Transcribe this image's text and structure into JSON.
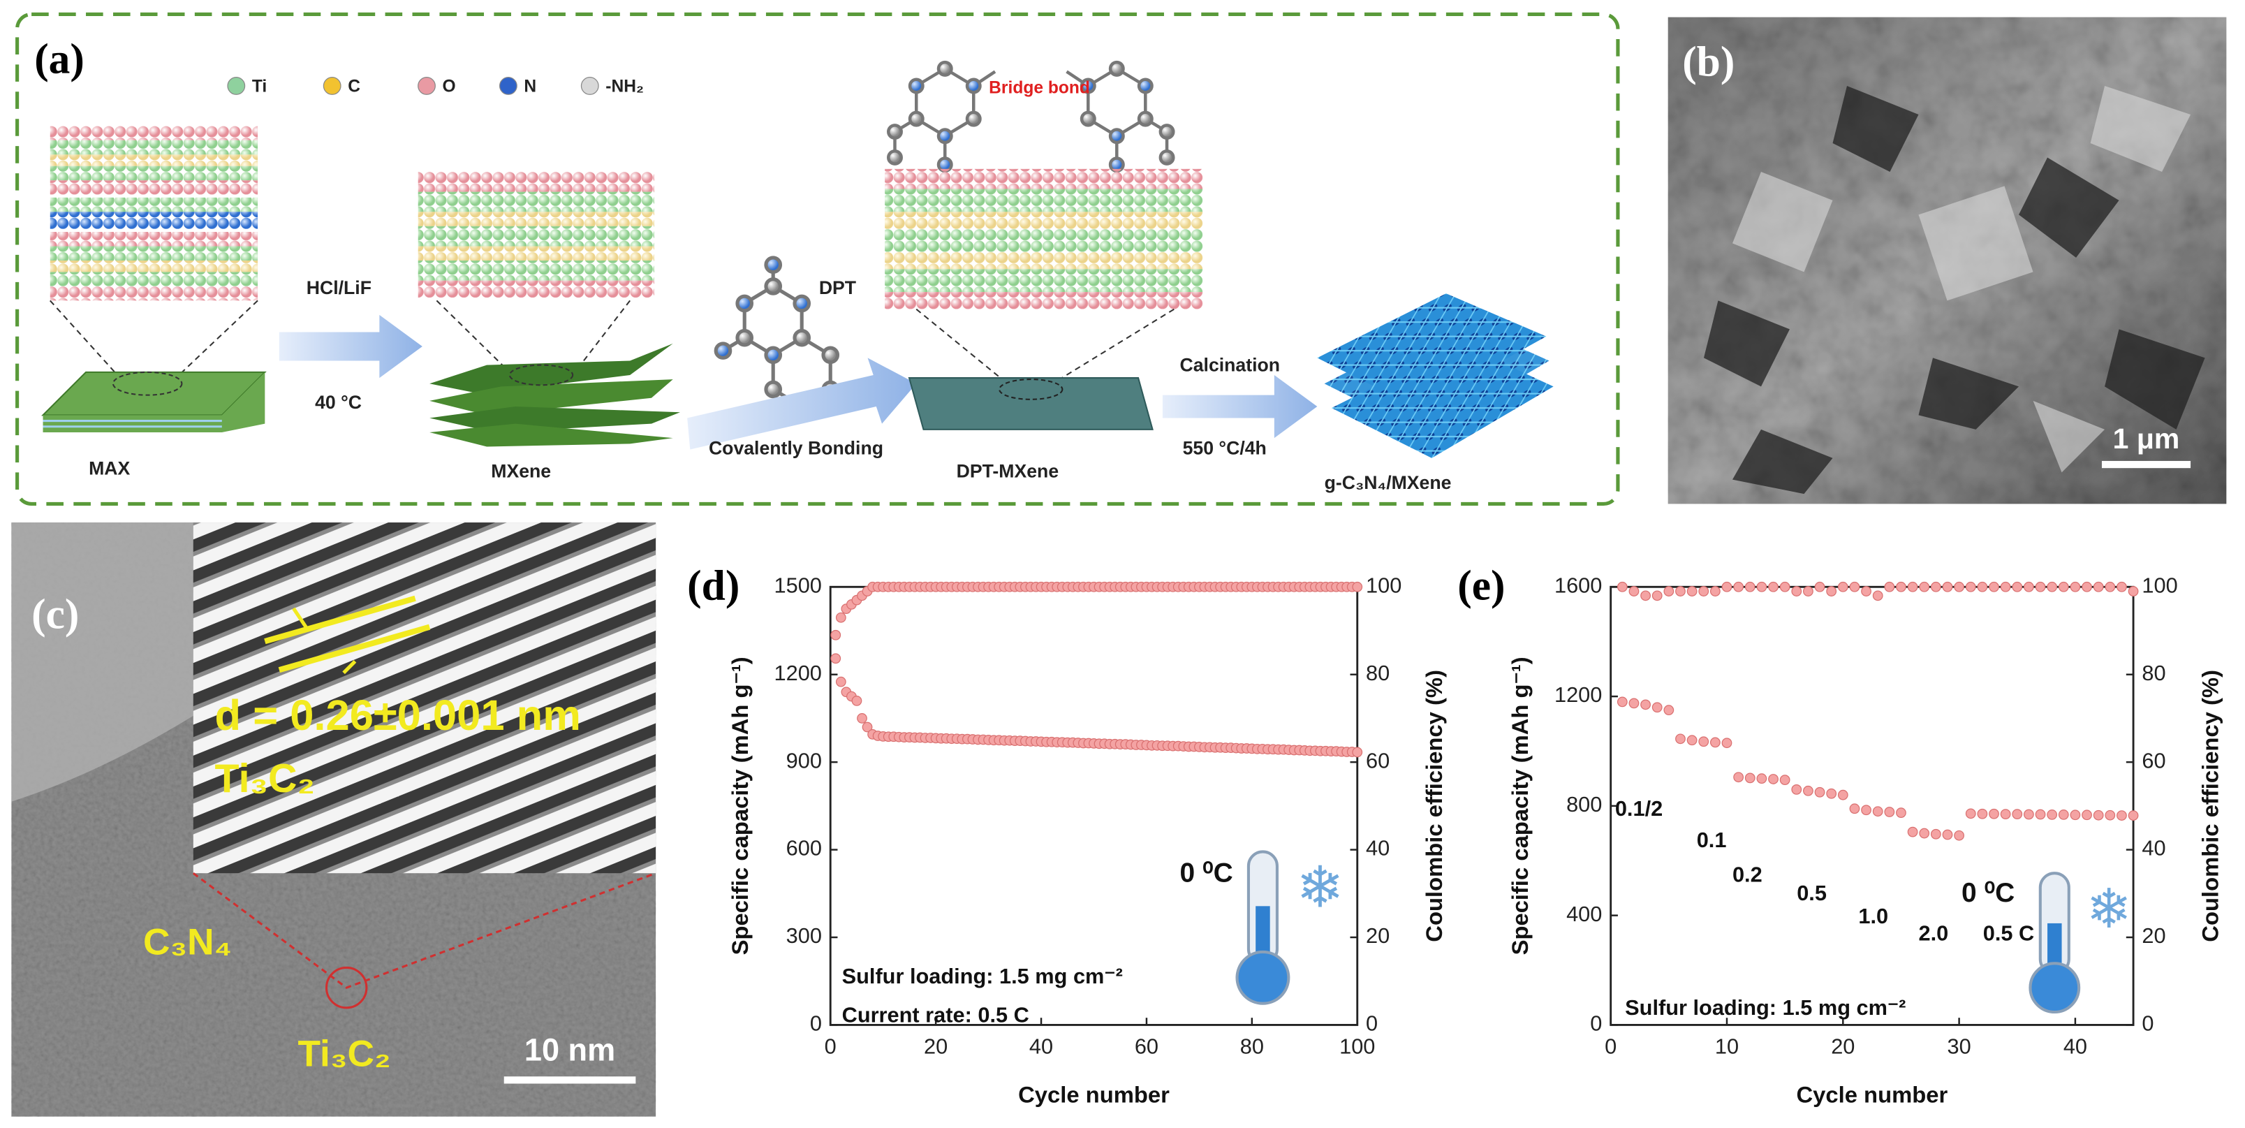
{
  "panel_a": {
    "label": "(a)",
    "legend": [
      {
        "name": "Ti",
        "color": "#8fd19e"
      },
      {
        "name": "C",
        "color": "#f2c230"
      },
      {
        "name": "O",
        "color": "#e99aa3"
      },
      {
        "name": "N",
        "color": "#2f63c9"
      },
      {
        "name": "-NH₂",
        "color": "#d8d8d8"
      }
    ],
    "max": "MAX",
    "reagent": "HCl/LiF",
    "etch_temperature": "40 °C",
    "mxene": "MXene",
    "dpt": "DPT",
    "bonding": "Covalently Bonding",
    "bridge": "Bridge bond",
    "dpt_mxene": "DPT-MXene",
    "calcination": "Calcination",
    "calcination_condition": "550 °C/4h",
    "product": "g-C₃N₄/MXene"
  },
  "panel_b": {
    "label": "(b)",
    "scale_bar": "1 μm"
  },
  "panel_c": {
    "label": "(c)",
    "spacing": "d = 0.26±0.001 nm",
    "inset_phase": "Ti₃C₂",
    "phase_1": "C₃N₄",
    "phase_2": "Ti₃C₂",
    "scale_bar": "10 nm"
  },
  "chart_data": [
    {
      "type": "scatter",
      "label": "(d)",
      "xlabel": "Cycle number",
      "ylabel": "Specific capacity (mAh g⁻¹)",
      "y2label": "Coulombic efficiency (%)",
      "x": [
        1,
        2,
        3,
        4,
        5,
        6,
        7,
        8,
        9,
        10,
        11,
        12,
        13,
        14,
        15,
        16,
        17,
        18,
        19,
        20,
        21,
        22,
        23,
        24,
        25,
        26,
        27,
        28,
        29,
        30,
        31,
        32,
        33,
        34,
        35,
        36,
        37,
        38,
        39,
        40,
        41,
        42,
        43,
        44,
        45,
        46,
        47,
        48,
        49,
        50,
        51,
        52,
        53,
        54,
        55,
        56,
        57,
        58,
        59,
        60,
        61,
        62,
        63,
        64,
        65,
        66,
        67,
        68,
        69,
        70,
        71,
        72,
        73,
        74,
        75,
        76,
        77,
        78,
        79,
        80,
        81,
        82,
        83,
        84,
        85,
        86,
        87,
        88,
        89,
        90,
        91,
        92,
        93,
        94,
        95,
        96,
        97,
        98,
        99,
        100
      ],
      "series": [
        {
          "color": "#f4a3a3",
          "values": [
            1255,
            1175,
            1140,
            1125,
            1110,
            1050,
            1020,
            995,
            990,
            988,
            987,
            987,
            986,
            985,
            985,
            984,
            984,
            983,
            983,
            982,
            981,
            981,
            980,
            980,
            979,
            979,
            978,
            977,
            977,
            976,
            975,
            975,
            974,
            974,
            973,
            973,
            972,
            971,
            971,
            970,
            969,
            969,
            968,
            968,
            967,
            967,
            966,
            965,
            965,
            964,
            963,
            963,
            962,
            962,
            961,
            961,
            960,
            959,
            959,
            958,
            957,
            957,
            956,
            956,
            955,
            955,
            954,
            953,
            953,
            952,
            951,
            951,
            950,
            950,
            949,
            949,
            948,
            947,
            947,
            946,
            945,
            945,
            944,
            944,
            943,
            943,
            942,
            941,
            941,
            940,
            939,
            939,
            938,
            938,
            937,
            937,
            936,
            935,
            935,
            934
          ]
        },
        {
          "color": "#f4a3a3",
          "axis": "y2",
          "values": [
            89,
            93,
            95,
            96,
            97,
            98,
            99,
            100,
            100,
            100,
            100,
            100,
            100,
            100,
            100,
            100,
            100,
            100,
            100,
            100,
            100,
            100,
            100,
            100,
            100,
            100,
            100,
            100,
            100,
            100,
            100,
            100,
            100,
            100,
            100,
            100,
            100,
            100,
            100,
            100,
            100,
            100,
            100,
            100,
            100,
            100,
            100,
            100,
            100,
            100,
            100,
            100,
            100,
            100,
            100,
            100,
            100,
            100,
            100,
            100,
            100,
            100,
            100,
            100,
            100,
            100,
            100,
            100,
            100,
            100,
            100,
            100,
            100,
            100,
            100,
            100,
            100,
            100,
            100,
            100,
            100,
            100,
            100,
            100,
            100,
            100,
            100,
            100,
            100,
            100,
            100,
            100,
            100,
            100,
            100,
            100,
            100,
            100,
            100,
            100
          ]
        }
      ],
      "xlim": [
        0,
        100
      ],
      "xticks": [
        0,
        20,
        40,
        60,
        80,
        100
      ],
      "ylim": [
        0,
        1500
      ],
      "yticks": [
        0,
        300,
        600,
        900,
        1200,
        1500
      ],
      "y2lim": [
        0,
        100
      ],
      "y2ticks": [
        0,
        20,
        40,
        60,
        80,
        100
      ],
      "annotations": [
        "Sulfur loading: 1.5 mg cm⁻²",
        "Current rate: 0.5 C",
        "0 ⁰C"
      ]
    },
    {
      "type": "scatter",
      "label": "(e)",
      "xlabel": "Cycle number",
      "ylabel": "Specific capacity (mAh g⁻¹)",
      "y2label": "Coulombic efficiency (%)",
      "x": [
        1,
        2,
        3,
        4,
        5,
        6,
        7,
        8,
        9,
        10,
        11,
        12,
        13,
        14,
        15,
        16,
        17,
        18,
        19,
        20,
        21,
        22,
        23,
        24,
        25,
        26,
        27,
        28,
        29,
        30,
        31,
        32,
        33,
        34,
        35,
        36,
        37,
        38,
        39,
        40,
        41,
        42,
        43,
        44,
        45
      ],
      "series": [
        {
          "color": "#f4a3a3",
          "values": [
            1180,
            1175,
            1170,
            1160,
            1150,
            1045,
            1040,
            1035,
            1032,
            1030,
            905,
            902,
            900,
            898,
            895,
            860,
            855,
            850,
            845,
            840,
            790,
            785,
            780,
            778,
            775,
            705,
            700,
            697,
            695,
            692,
            772,
            771,
            771,
            770,
            770,
            769,
            769,
            768,
            768,
            767,
            767,
            766,
            766,
            765,
            765
          ]
        },
        {
          "color": "#f4a3a3",
          "axis": "y2",
          "values": [
            100,
            99,
            98,
            98,
            99,
            99,
            99,
            99,
            99,
            100,
            100,
            100,
            100,
            100,
            100,
            99,
            99,
            100,
            99,
            100,
            100,
            99,
            98,
            100,
            100,
            100,
            100,
            100,
            100,
            100,
            100,
            100,
            100,
            100,
            100,
            100,
            100,
            100,
            100,
            100,
            100,
            100,
            100,
            100,
            99
          ]
        }
      ],
      "xlim": [
        0,
        45
      ],
      "xticks": [
        0,
        10,
        20,
        30,
        40
      ],
      "ylim": [
        0,
        1600
      ],
      "yticks": [
        0,
        400,
        800,
        1200,
        1600
      ],
      "y2lim": [
        0,
        100
      ],
      "y2ticks": [
        0,
        20,
        40,
        60,
        80,
        100
      ],
      "annotations": [
        "Sulfur loading: 1.5 mg cm⁻²",
        "0 ⁰C",
        "0.1/2",
        "0.1",
        "0.2",
        "0.5",
        "1.0",
        "2.0",
        "0.5 C"
      ]
    }
  ]
}
